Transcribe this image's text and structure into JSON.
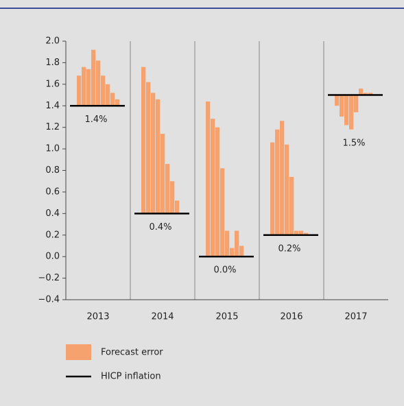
{
  "chart_data": {
    "type": "bar",
    "categories": [
      "2013",
      "2014",
      "2015",
      "2016",
      "2017"
    ],
    "series": [
      {
        "name": "Forecast error",
        "color": "#f6a26f",
        "values": [
          [
            0.28,
            0.36,
            0.34,
            0.52,
            0.42,
            0.28,
            0.2,
            0.12,
            0.06
          ],
          [
            1.36,
            1.22,
            1.12,
            1.06,
            0.74,
            0.46,
            0.3,
            0.12
          ],
          [
            1.44,
            1.28,
            1.2,
            0.82,
            0.24,
            0.08,
            0.24,
            0.1
          ],
          [
            0.86,
            0.98,
            1.06,
            0.84,
            0.54,
            0.04,
            0.04,
            0.02
          ],
          [
            -0.1,
            -0.2,
            -0.28,
            -0.32,
            -0.16,
            0.06,
            0.02,
            0.02
          ]
        ]
      },
      {
        "name": "HICP inflation",
        "color": "#000000",
        "values": [
          1.4,
          0.4,
          0.0,
          0.2,
          1.5
        ],
        "value_labels": [
          "1.4%",
          "0.4%",
          "0.0%",
          "0.2%",
          "1.5%"
        ]
      }
    ],
    "ylim": [
      -0.4,
      2.0
    ],
    "yticks": [
      {
        "value": -0.4,
        "label": "−0.4"
      },
      {
        "value": -0.2,
        "label": "−0.2"
      },
      {
        "value": 0,
        "label": "0.0"
      },
      0.2,
      0.4,
      0.6,
      0.8,
      {
        "value": 1,
        "label": "1.0"
      },
      1.2,
      1.4,
      1.6,
      1.8,
      {
        "value": 2,
        "label": "2.0"
      }
    ]
  }
}
